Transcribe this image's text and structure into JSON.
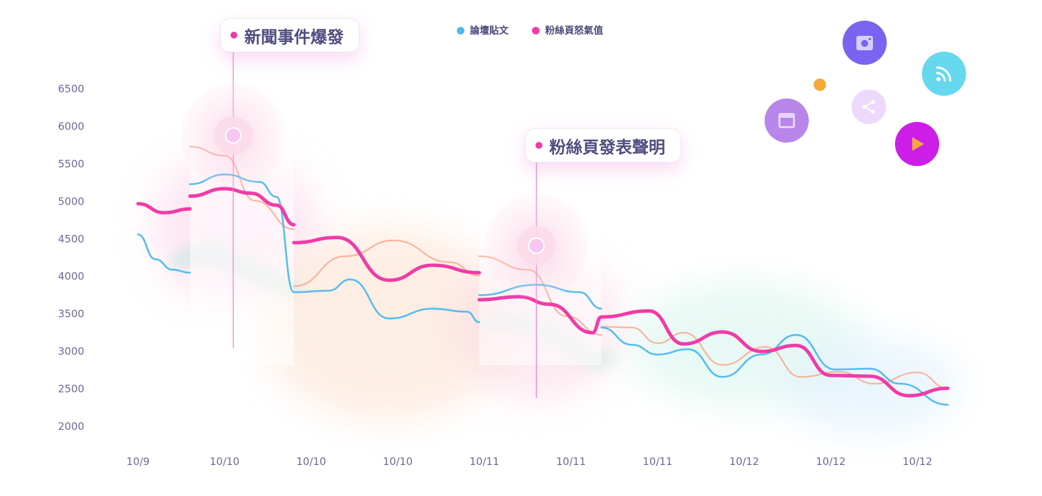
{
  "chart_data": {
    "type": "line",
    "title": "",
    "xlabel": "",
    "ylabel": "",
    "ylim": [
      2000,
      6500
    ],
    "y_ticks": [
      "6500",
      "6000",
      "5500",
      "5000",
      "4500",
      "4000",
      "3500",
      "3000",
      "2500",
      "2000"
    ],
    "categories": [
      "10/9",
      "10/10",
      "10/10",
      "10/10",
      "10/11",
      "10/11",
      "10/11",
      "10/12",
      "10/12",
      "10/12"
    ],
    "grid": false,
    "legend_position": "top",
    "series": [
      {
        "name": "論壇貼文",
        "color": "#4db8ee",
        "points": [
          [
            0,
            4550
          ],
          [
            0.2,
            4220
          ],
          [
            0.4,
            4080
          ],
          [
            0.6,
            4040
          ],
          [
            0.6,
            5220
          ],
          [
            1,
            5350
          ],
          [
            1.4,
            5250
          ],
          [
            1.6,
            5050
          ],
          [
            1.8,
            3780
          ],
          [
            2.2,
            3800
          ],
          [
            2.45,
            3950
          ],
          [
            2.9,
            3430
          ],
          [
            3.4,
            3560
          ],
          [
            3.8,
            3520
          ],
          [
            3.94,
            3380
          ],
          [
            3.94,
            3740
          ],
          [
            4.6,
            3880
          ],
          [
            5.1,
            3780
          ],
          [
            5.35,
            3560
          ],
          [
            5.35,
            3310
          ],
          [
            5.7,
            3080
          ],
          [
            6.0,
            2950
          ],
          [
            6.35,
            3020
          ],
          [
            6.75,
            2650
          ],
          [
            7.2,
            2950
          ],
          [
            7.6,
            3210
          ],
          [
            8.05,
            2750
          ],
          [
            8.45,
            2760
          ],
          [
            8.8,
            2560
          ],
          [
            9.35,
            2280
          ]
        ]
      },
      {
        "name": "粉絲頁怒氣值",
        "color": "#f03ba7",
        "points": [
          [
            0,
            4960
          ],
          [
            0.3,
            4840
          ],
          [
            0.6,
            4890
          ],
          [
            0.6,
            5060
          ],
          [
            1,
            5160
          ],
          [
            1.3,
            5100
          ],
          [
            1.6,
            4940
          ],
          [
            1.8,
            4680
          ],
          [
            1.8,
            4440
          ],
          [
            2.3,
            4510
          ],
          [
            2.9,
            3940
          ],
          [
            3.4,
            4140
          ],
          [
            3.94,
            4040
          ],
          [
            3.94,
            3680
          ],
          [
            4.4,
            3720
          ],
          [
            4.75,
            3620
          ],
          [
            5.25,
            3240
          ],
          [
            5.35,
            3450
          ],
          [
            5.9,
            3530
          ],
          [
            6.3,
            3090
          ],
          [
            6.75,
            3250
          ],
          [
            7.2,
            2990
          ],
          [
            7.6,
            3070
          ],
          [
            8.0,
            2670
          ],
          [
            8.45,
            2660
          ],
          [
            8.9,
            2400
          ],
          [
            9.35,
            2500
          ]
        ]
      },
      {
        "name": "",
        "color": "#f7a88e",
        "points": [
          [
            0.6,
            5720
          ],
          [
            1,
            5600
          ],
          [
            1.35,
            5000
          ],
          [
            1.8,
            4620
          ],
          [
            1.8,
            3860
          ],
          [
            2.4,
            4260
          ],
          [
            2.95,
            4470
          ],
          [
            3.6,
            4180
          ],
          [
            3.94,
            4000
          ],
          [
            3.94,
            4260
          ],
          [
            4.5,
            4080
          ],
          [
            4.95,
            3460
          ],
          [
            5.35,
            3210
          ],
          [
            5.35,
            3320
          ],
          [
            5.7,
            3310
          ],
          [
            6.0,
            3100
          ],
          [
            6.3,
            3240
          ],
          [
            6.75,
            2810
          ],
          [
            7.25,
            3050
          ],
          [
            7.65,
            2650
          ],
          [
            8.1,
            2720
          ],
          [
            8.5,
            2560
          ],
          [
            9.0,
            2710
          ],
          [
            9.35,
            2500
          ]
        ]
      }
    ],
    "annotations": [
      {
        "text": "新聞事件爆發",
        "x": 1.1,
        "y": 5870
      },
      {
        "text": "粉絲頁發表聲明",
        "x": 4.6,
        "y": 4400
      }
    ]
  },
  "icons": [
    "camera-icon",
    "rss-icon",
    "window-icon",
    "share-icon",
    "play-icon",
    "dot-icon"
  ],
  "icon_colors": {
    "camera": "#7a63f0",
    "rss": "#66d8ee",
    "window": "#b886ea",
    "share": "#ecd9fb",
    "play": "#cc1ee8",
    "dot": "#f5a83b"
  }
}
